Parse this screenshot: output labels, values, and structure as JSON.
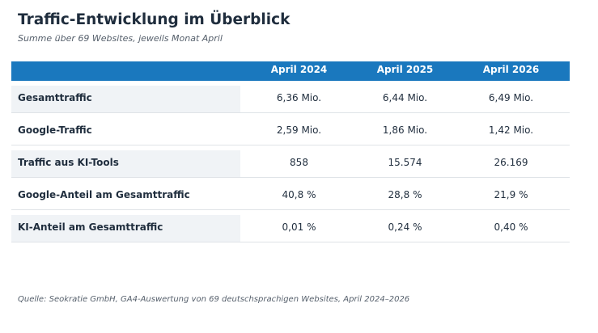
{
  "title": "Traffic-Entwicklung im Überblick",
  "subtitle": "Summe über 69 Websites, jeweils Monat April",
  "colors": {
    "header_bg": "#1a78be",
    "header_text": "#ffffff",
    "label_shade": "#f0f3f6",
    "text": "#1f2d3d",
    "row_border": "#dfe3e7"
  },
  "table": {
    "columns": [
      "",
      "April 2024",
      "April 2025",
      "April 2026"
    ],
    "rows": [
      {
        "label": "Gesamttraffic",
        "values": [
          "6,36 Mio.",
          "6,44 Mio.",
          "6,49 Mio."
        ],
        "shaded": true
      },
      {
        "label": "Google-Traffic",
        "values": [
          "2,59 Mio.",
          "1,86 Mio.",
          "1,42 Mio."
        ],
        "shaded": false
      },
      {
        "label": "Traffic aus KI-Tools",
        "values": [
          "858",
          "15.574",
          "26.169"
        ],
        "shaded": true
      },
      {
        "label": "Google-Anteil am Gesamttraffic",
        "values": [
          "40,8 %",
          "28,8 %",
          "21,9 %"
        ],
        "shaded": false
      },
      {
        "label": "KI-Anteil am Gesamttraffic",
        "values": [
          "0,01 %",
          "0,24 %",
          "0,40 %"
        ],
        "shaded": true
      }
    ]
  },
  "source": "Quelle: Seokratie GmbH, GA4-Auswertung von 69 deutschsprachigen Websites, April 2024–2026"
}
